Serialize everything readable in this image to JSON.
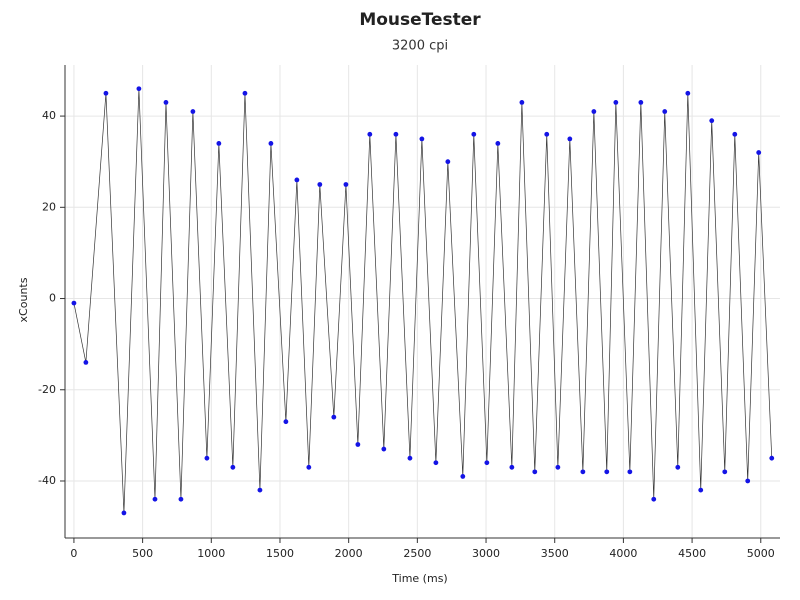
{
  "chart_data": {
    "type": "line",
    "title": "MouseTester",
    "subtitle": "3200 cpi",
    "x_label": "Time (ms)",
    "y_label": "xCounts",
    "x": [
      0,
      87,
      233,
      364,
      473,
      590,
      670,
      779,
      866,
      968,
      1055,
      1157,
      1245,
      1354,
      1434,
      1543,
      1623,
      1710,
      1790,
      1892,
      1980,
      2067,
      2154,
      2256,
      2344,
      2446,
      2533,
      2635,
      2722,
      2831,
      2911,
      3006,
      3086,
      3188,
      3261,
      3355,
      3442,
      3523,
      3610,
      3705,
      3785,
      3879,
      3945,
      4047,
      4127,
      4221,
      4301,
      4396,
      4469,
      4563,
      4643,
      4738,
      4811,
      4905,
      4985,
      5080
    ],
    "series": [
      {
        "name": "xCounts",
        "color": "#1414e6",
        "values": [
          -1,
          -14,
          45,
          -47,
          46,
          -44,
          43,
          -44,
          41,
          -35,
          34,
          -37,
          45,
          -42,
          34,
          -27,
          26,
          -37,
          25,
          -26,
          25,
          -32,
          36,
          -33,
          36,
          -35,
          35,
          -36,
          30,
          -39,
          36,
          -36,
          34,
          -37,
          43,
          -38,
          36,
          -37,
          35,
          -38,
          41,
          -38,
          43,
          -38,
          43,
          -44,
          41,
          -37,
          45,
          -42,
          39,
          -38,
          36,
          -40,
          32,
          -35
        ]
      }
    ],
    "xlim": [
      -65,
      5140
    ],
    "ylim": [
      -52.5,
      51.2
    ],
    "xticks": [
      0,
      500,
      1000,
      1500,
      2000,
      2500,
      3000,
      3500,
      4000,
      4500,
      5000
    ],
    "yticks": [
      -40,
      -20,
      0,
      20,
      40
    ],
    "grid": true
  }
}
